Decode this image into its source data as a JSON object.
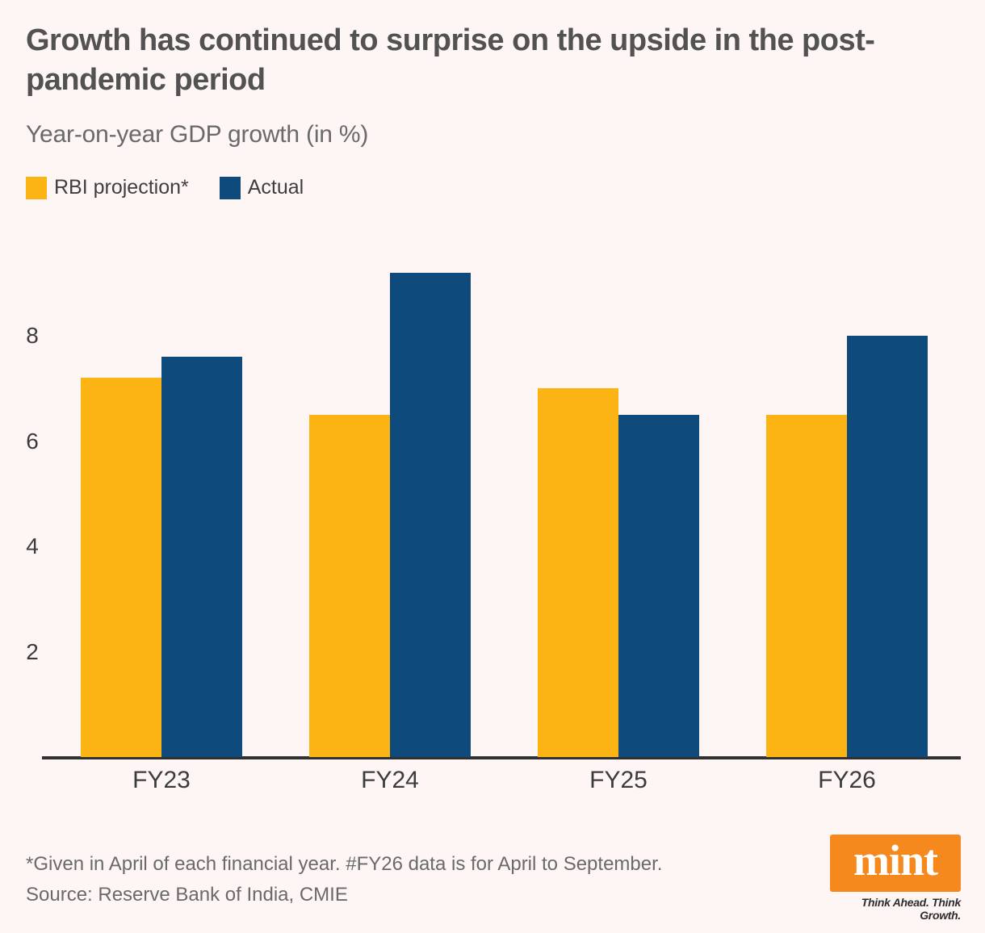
{
  "header": {
    "title_line1": "Growth has continued to surprise on the upside in the post-",
    "title_line2": "pandemic period",
    "subtitle": "Year-on-year GDP growth (in %)"
  },
  "legend": [
    {
      "label": "RBI projection*",
      "color": "#fcb415"
    },
    {
      "label": "Actual",
      "color": "#0e4b7c"
    }
  ],
  "chart_data": {
    "type": "bar",
    "title": "Growth has continued to surprise on the upside in the post-pandemic period",
    "subtitle": "Year-on-year GDP growth (in %)",
    "categories": [
      "FY23",
      "FY24",
      "FY25",
      "FY26"
    ],
    "series": [
      {
        "name": "RBI projection*",
        "color": "#fcb415",
        "values": [
          7.2,
          6.5,
          7.0,
          6.5
        ]
      },
      {
        "name": "Actual",
        "color": "#0e4b7c",
        "values": [
          7.6,
          9.2,
          6.5,
          8.0
        ]
      }
    ],
    "yticks": [
      2,
      4,
      6,
      8
    ],
    "ylim": [
      0,
      9.5
    ],
    "grid": false,
    "legend_position": "top-left",
    "unit_suffix": "%"
  },
  "footer": {
    "note": "*Given in April of each financial year. #FY26 data is for April to September.",
    "source": "Source: Reserve Bank of India, CMIE",
    "brand": {
      "logo_text": "mint",
      "logo_color": "#f6891e",
      "tagline": "Think Ahead. Think Growth."
    }
  },
  "colors": {
    "background": "#fdf6f4",
    "axis": "#303030",
    "title_text": "#525252",
    "body_text": "#6a6a6a"
  }
}
